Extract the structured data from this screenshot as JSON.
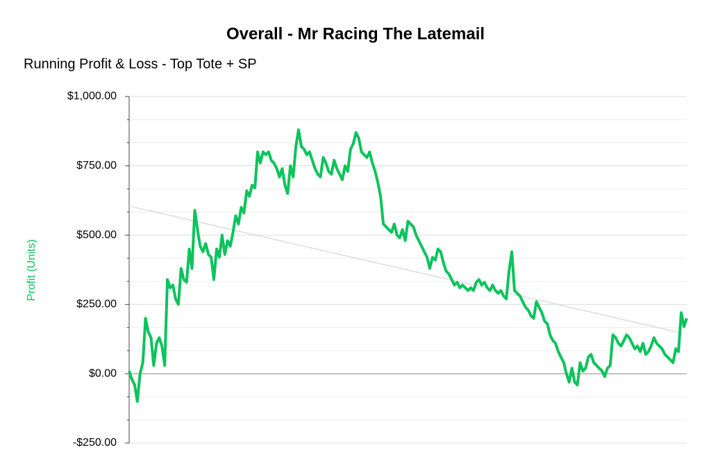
{
  "chart_data": {
    "type": "line",
    "title": "Overall - Mr Racing The Latemail",
    "subtitle": "Running Profit & Loss - Top Tote + SP",
    "y_label": "Profit (Units)",
    "color": "#0cc35c",
    "ylim": [
      -250,
      1000
    ],
    "yticks": [
      {
        "value": -250,
        "label": "-$250.00"
      },
      {
        "value": 0,
        "label": "$0.00"
      },
      {
        "value": 250,
        "label": "$250.00"
      },
      {
        "value": 500,
        "label": "$500.00"
      },
      {
        "value": 750,
        "label": "$750.00"
      },
      {
        "value": 1000,
        "label": "$1,000.00"
      }
    ],
    "minor_divisions": 3,
    "grid": true,
    "trendline": {
      "start": 605,
      "end": 148,
      "color": "#dcdcdc"
    },
    "values": [
      10,
      -20,
      -40,
      -100,
      0,
      40,
      200,
      150,
      130,
      30,
      110,
      130,
      100,
      30,
      340,
      310,
      320,
      270,
      250,
      380,
      340,
      330,
      450,
      380,
      590,
      520,
      460,
      440,
      470,
      430,
      420,
      340,
      450,
      420,
      500,
      430,
      480,
      460,
      510,
      570,
      540,
      600,
      580,
      660,
      640,
      680,
      670,
      800,
      760,
      800,
      790,
      800,
      770,
      760,
      740,
      710,
      740,
      680,
      650,
      750,
      710,
      820,
      880,
      820,
      810,
      790,
      800,
      770,
      740,
      720,
      710,
      780,
      760,
      730,
      720,
      770,
      740,
      720,
      700,
      750,
      730,
      810,
      830,
      870,
      850,
      800,
      790,
      780,
      800,
      760,
      730,
      690,
      640,
      540,
      530,
      520,
      510,
      540,
      500,
      490,
      520,
      480,
      550,
      540,
      530,
      500,
      480,
      460,
      440,
      420,
      380,
      420,
      410,
      450,
      440,
      400,
      370,
      360,
      340,
      320,
      330,
      310,
      320,
      310,
      300,
      310,
      300,
      330,
      340,
      320,
      330,
      310,
      300,
      320,
      300,
      290,
      300,
      280,
      270,
      370,
      440,
      300,
      290,
      280,
      260,
      240,
      230,
      210,
      200,
      260,
      240,
      220,
      190,
      180,
      140,
      120,
      110,
      80,
      60,
      40,
      0,
      -30,
      20,
      -30,
      -40,
      40,
      10,
      20,
      60,
      70,
      40,
      30,
      20,
      10,
      -10,
      20,
      30,
      140,
      130,
      110,
      100,
      120,
      140,
      130,
      110,
      90,
      100,
      80,
      110,
      70,
      80,
      100,
      130,
      110,
      100,
      90,
      70,
      60,
      50,
      40,
      90,
      80,
      220,
      170,
      200
    ]
  }
}
